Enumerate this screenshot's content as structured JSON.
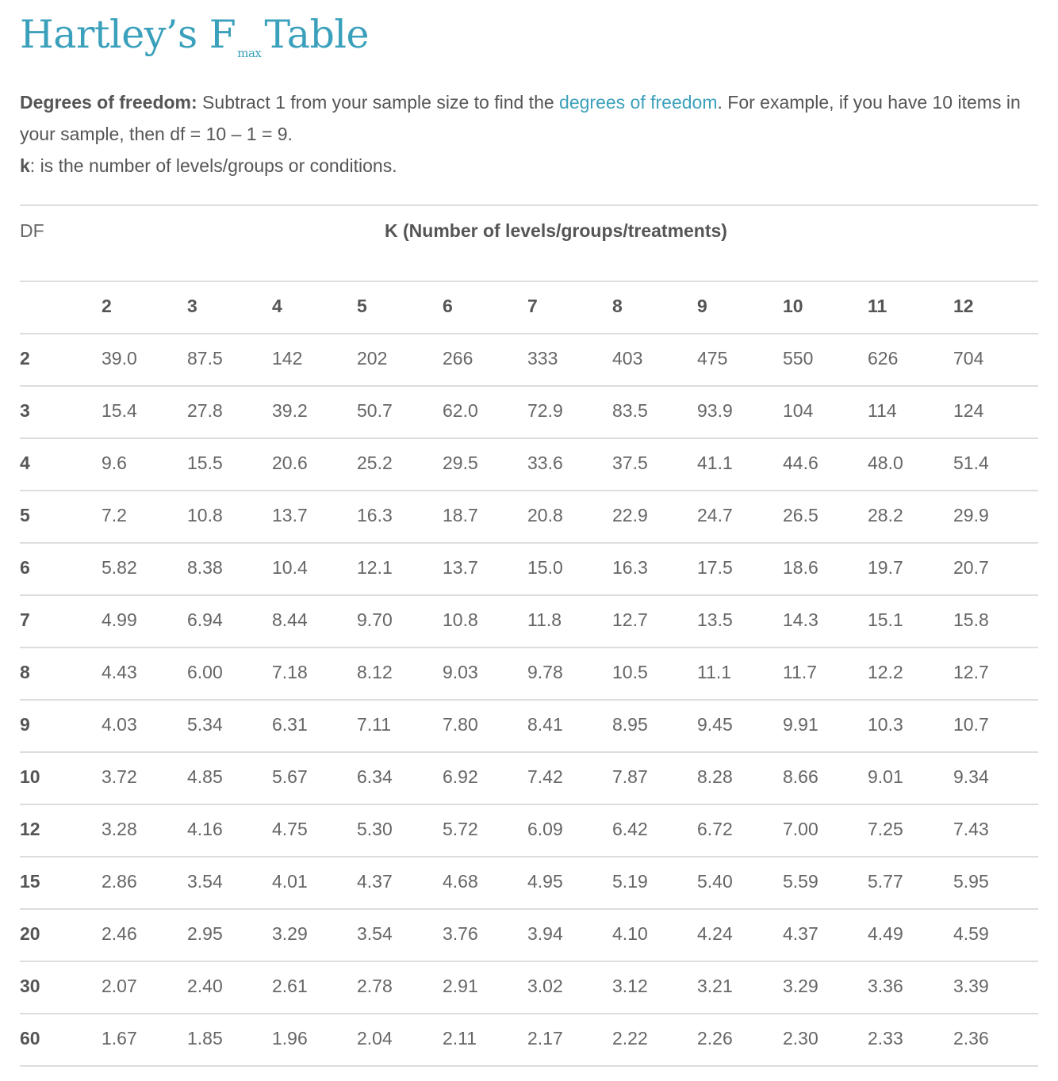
{
  "title": {
    "main": "Hartley’s F",
    "subscript": "max",
    "suffix": "Table"
  },
  "intro": {
    "df_label": "Degrees of freedom:",
    "df_text_before_link": " Subtract 1 from your sample size to find the ",
    "df_link": "degrees of freedom",
    "df_text_after_link": ". For example, if you have 10 items in your sample, then df = 10 – 1 = 9.",
    "k_label": "k",
    "k_text": ": is the number of levels/groups or conditions."
  },
  "table": {
    "df_header": "DF",
    "k_header": "K (Number of levels/groups/treatments)",
    "k_values": [
      "2",
      "3",
      "4",
      "5",
      "6",
      "7",
      "8",
      "9",
      "10",
      "11",
      "12"
    ],
    "rows": [
      {
        "df": "2",
        "values": [
          "39.0",
          "87.5",
          "142",
          "202",
          "266",
          "333",
          "403",
          "475",
          "550",
          "626",
          "704"
        ]
      },
      {
        "df": "3",
        "values": [
          "15.4",
          "27.8",
          "39.2",
          "50.7",
          "62.0",
          "72.9",
          "83.5",
          "93.9",
          "104",
          "114",
          "124"
        ]
      },
      {
        "df": "4",
        "values": [
          "9.6",
          "15.5",
          "20.6",
          "25.2",
          "29.5",
          "33.6",
          "37.5",
          "41.1",
          "44.6",
          "48.0",
          "51.4"
        ]
      },
      {
        "df": "5",
        "values": [
          "7.2",
          "10.8",
          "13.7",
          "16.3",
          "18.7",
          "20.8",
          "22.9",
          "24.7",
          "26.5",
          "28.2",
          "29.9"
        ]
      },
      {
        "df": "6",
        "values": [
          "5.82",
          "8.38",
          "10.4",
          "12.1",
          "13.7",
          "15.0",
          "16.3",
          "17.5",
          "18.6",
          "19.7",
          "20.7"
        ]
      },
      {
        "df": "7",
        "values": [
          "4.99",
          "6.94",
          "8.44",
          "9.70",
          "10.8",
          "11.8",
          "12.7",
          "13.5",
          "14.3",
          "15.1",
          "15.8"
        ]
      },
      {
        "df": "8",
        "values": [
          "4.43",
          "6.00",
          "7.18",
          "8.12",
          "9.03",
          "9.78",
          "10.5",
          "11.1",
          "11.7",
          "12.2",
          "12.7"
        ]
      },
      {
        "df": "9",
        "values": [
          "4.03",
          "5.34",
          "6.31",
          "7.11",
          "7.80",
          "8.41",
          "8.95",
          "9.45",
          "9.91",
          "10.3",
          "10.7"
        ]
      },
      {
        "df": "10",
        "values": [
          "3.72",
          "4.85",
          "5.67",
          "6.34",
          "6.92",
          "7.42",
          "7.87",
          "8.28",
          "8.66",
          "9.01",
          "9.34"
        ]
      },
      {
        "df": "12",
        "values": [
          "3.28",
          "4.16",
          "4.75",
          "5.30",
          "5.72",
          "6.09",
          "6.42",
          "6.72",
          "7.00",
          "7.25",
          "7.43"
        ]
      },
      {
        "df": "15",
        "values": [
          "2.86",
          "3.54",
          "4.01",
          "4.37",
          "4.68",
          "4.95",
          "5.19",
          "5.40",
          "5.59",
          "5.77",
          "5.95"
        ]
      },
      {
        "df": "20",
        "values": [
          "2.46",
          "2.95",
          "3.29",
          "3.54",
          "3.76",
          "3.94",
          "4.10",
          "4.24",
          "4.37",
          "4.49",
          "4.59"
        ]
      },
      {
        "df": "30",
        "values": [
          "2.07",
          "2.40",
          "2.61",
          "2.78",
          "2.91",
          "3.02",
          "3.12",
          "3.21",
          "3.29",
          "3.36",
          "3.39"
        ]
      },
      {
        "df": "60",
        "values": [
          "1.67",
          "1.85",
          "1.96",
          "2.04",
          "2.11",
          "2.17",
          "2.22",
          "2.26",
          "2.30",
          "2.33",
          "2.36"
        ]
      }
    ]
  },
  "colors": {
    "accent": "#3aa0bb",
    "text": "#555555",
    "rule": "#dddddd"
  }
}
